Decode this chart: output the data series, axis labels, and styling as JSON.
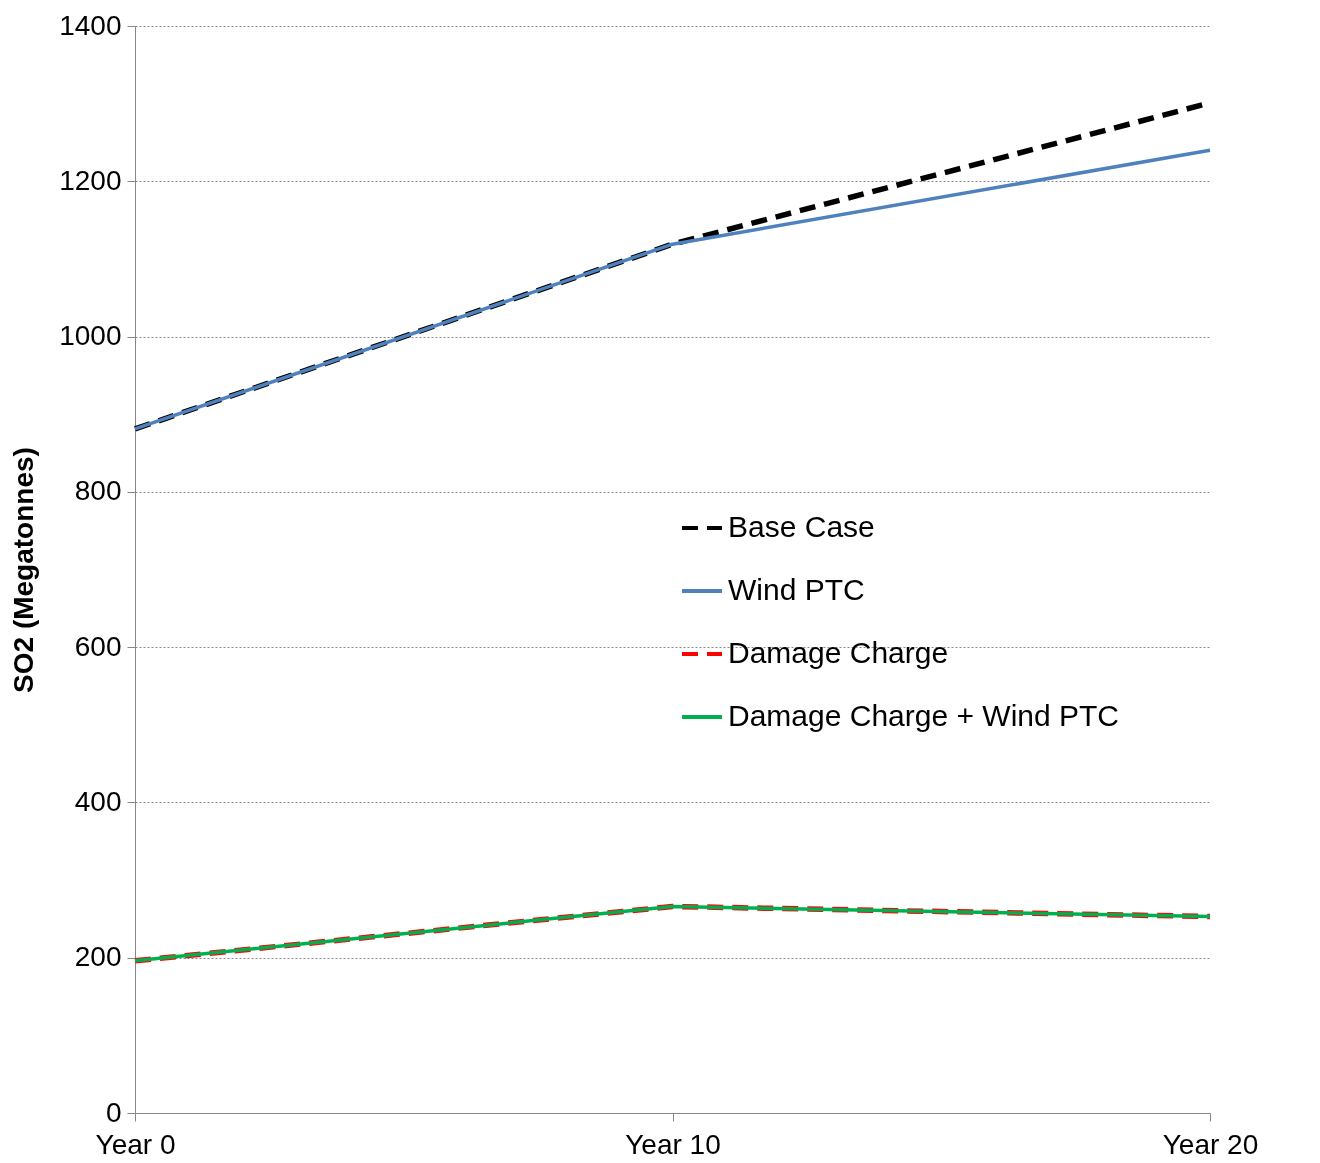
{
  "chart_data": {
    "type": "line",
    "ylabel": "SO2 (Megatonnes)",
    "categories": [
      "Year 0",
      "Year 10",
      "Year 20"
    ],
    "series": [
      {
        "name": "Base Case",
        "color": "#000000",
        "line_style": "dashed",
        "values": [
          881,
          1119,
          1301
        ]
      },
      {
        "name": "Wind PTC",
        "color": "#4f81bd",
        "line_style": "solid",
        "values": [
          881,
          1119,
          1240
        ]
      },
      {
        "name": "Damage Charge",
        "color": "#ff0000",
        "line_style": "dashed",
        "values": [
          196,
          266,
          253
        ]
      },
      {
        "name": "Damage Charge + Wind PTC",
        "color": "#00b050",
        "line_style": "solid",
        "values": [
          196,
          266,
          253
        ]
      }
    ],
    "ylim": [
      0,
      1400
    ],
    "yticks": [
      0,
      200,
      400,
      600,
      800,
      1000,
      1200,
      1400
    ],
    "grid": "y",
    "legend": "right",
    "marker": "none"
  }
}
